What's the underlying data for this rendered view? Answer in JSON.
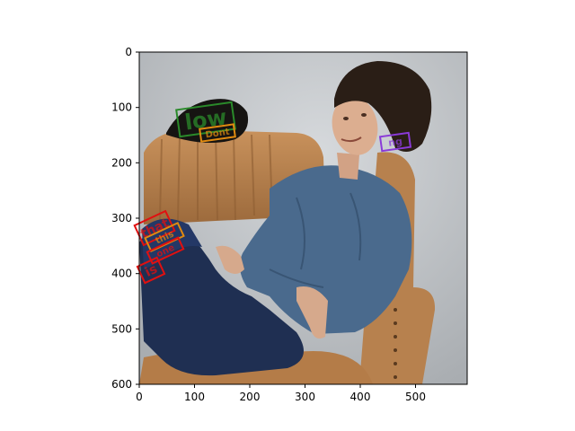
{
  "axes": {
    "x_ticks": [
      "0",
      "100",
      "200",
      "300",
      "400",
      "500"
    ],
    "y_ticks": [
      "0",
      "100",
      "200",
      "300",
      "400",
      "500",
      "600"
    ]
  },
  "photo": {
    "description_icon": "portrait-photo-icon",
    "background_color": "#c9cdd1",
    "chair_color": "#c08a55",
    "shirt_color": "#4a6a8d",
    "jeans_color": "#1f2f52",
    "hair_color": "#2a1e16",
    "hat_color": "#161412"
  },
  "annotations": [
    {
      "text": "low",
      "color": "#2a8a2a",
      "width": 1
    },
    {
      "text": "Dont",
      "color": "#e08a10",
      "width": 1
    },
    {
      "text": "ng",
      "color": "#8a3ad8",
      "width": 1
    },
    {
      "text": "that",
      "color": "#e01010",
      "width": 1
    },
    {
      "text": "this",
      "color": "#e08a10",
      "width": 1
    },
    {
      "text": "one",
      "color": "#e01010",
      "width": 1
    },
    {
      "text": "is",
      "color": "#e01010",
      "width": 1
    }
  ]
}
